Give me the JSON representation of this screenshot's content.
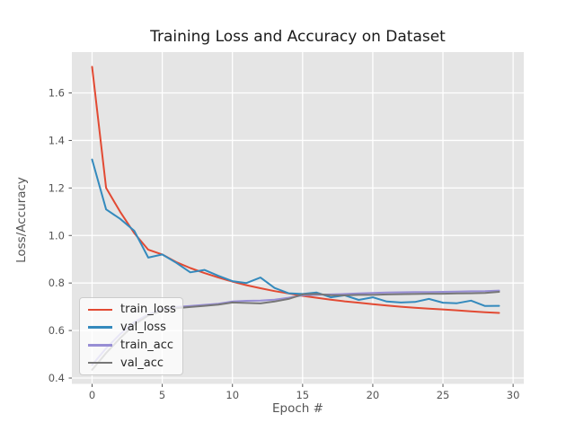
{
  "figure": {
    "background": "#ffffff",
    "plot_background": "#e5e5e5",
    "grid_color": "#ffffff",
    "tick_color": "#555555",
    "tick_label_color": "#555555",
    "axis_label_color": "#555555",
    "title_color": "#1a1a1a",
    "legend_border_color": "#cccccc"
  },
  "chart_data": {
    "type": "line",
    "title": "Training Loss and Accuracy on Dataset",
    "xlabel": "Epoch #",
    "ylabel": "Loss/Accuracy",
    "xlim": [
      -1.44,
      30.76
    ],
    "ylim": [
      0.3755,
      1.772
    ],
    "grid": true,
    "legend_position": "lower left",
    "xticks": [
      0,
      5,
      10,
      15,
      20,
      25,
      30
    ],
    "xtick_labels": [
      "0",
      "5",
      "10",
      "15",
      "20",
      "25",
      "30"
    ],
    "yticks": [
      0.4,
      0.6,
      0.8,
      1.0,
      1.2,
      1.4,
      1.6
    ],
    "ytick_labels": [
      "0.4",
      "0.6",
      "0.8",
      "1.0",
      "1.2",
      "1.4",
      "1.6"
    ],
    "x": [
      0,
      1,
      2,
      3,
      4,
      5,
      6,
      7,
      8,
      9,
      10,
      11,
      12,
      13,
      14,
      15,
      16,
      17,
      18,
      19,
      20,
      21,
      22,
      23,
      24,
      25,
      26,
      27,
      28,
      29
    ],
    "series": [
      {
        "name": "train_loss",
        "color": "#E24A33",
        "values": [
          1.71,
          1.2,
          1.1,
          1.01,
          0.94,
          0.92,
          0.888,
          0.863,
          0.842,
          0.823,
          0.806,
          0.791,
          0.778,
          0.766,
          0.756,
          0.746,
          0.738,
          0.73,
          0.723,
          0.717,
          0.711,
          0.705,
          0.7,
          0.696,
          0.692,
          0.689,
          0.685,
          0.681,
          0.677,
          0.674
        ]
      },
      {
        "name": "val_loss",
        "color": "#348ABD",
        "values": [
          1.32,
          1.11,
          1.07,
          1.02,
          0.907,
          0.92,
          0.885,
          0.845,
          0.855,
          0.83,
          0.808,
          0.8,
          0.823,
          0.779,
          0.757,
          0.754,
          0.76,
          0.74,
          0.748,
          0.729,
          0.74,
          0.722,
          0.718,
          0.72,
          0.733,
          0.717,
          0.715,
          0.726,
          0.703,
          0.704
        ]
      },
      {
        "name": "train_acc",
        "color": "#988ED5",
        "values": [
          0.455,
          0.525,
          0.585,
          0.635,
          0.668,
          0.688,
          0.699,
          0.703,
          0.708,
          0.713,
          0.722,
          0.725,
          0.726,
          0.73,
          0.738,
          0.748,
          0.75,
          0.752,
          0.754,
          0.756,
          0.758,
          0.76,
          0.761,
          0.762,
          0.762,
          0.763,
          0.764,
          0.765,
          0.766,
          0.768
        ]
      },
      {
        "name": "val_acc",
        "color": "#777777",
        "values": [
          0.435,
          0.505,
          0.568,
          0.625,
          0.663,
          0.684,
          0.694,
          0.699,
          0.704,
          0.709,
          0.718,
          0.716,
          0.714,
          0.722,
          0.733,
          0.752,
          0.754,
          0.749,
          0.748,
          0.75,
          0.75,
          0.752,
          0.753,
          0.754,
          0.755,
          0.755,
          0.756,
          0.757,
          0.758,
          0.763
        ]
      }
    ]
  }
}
